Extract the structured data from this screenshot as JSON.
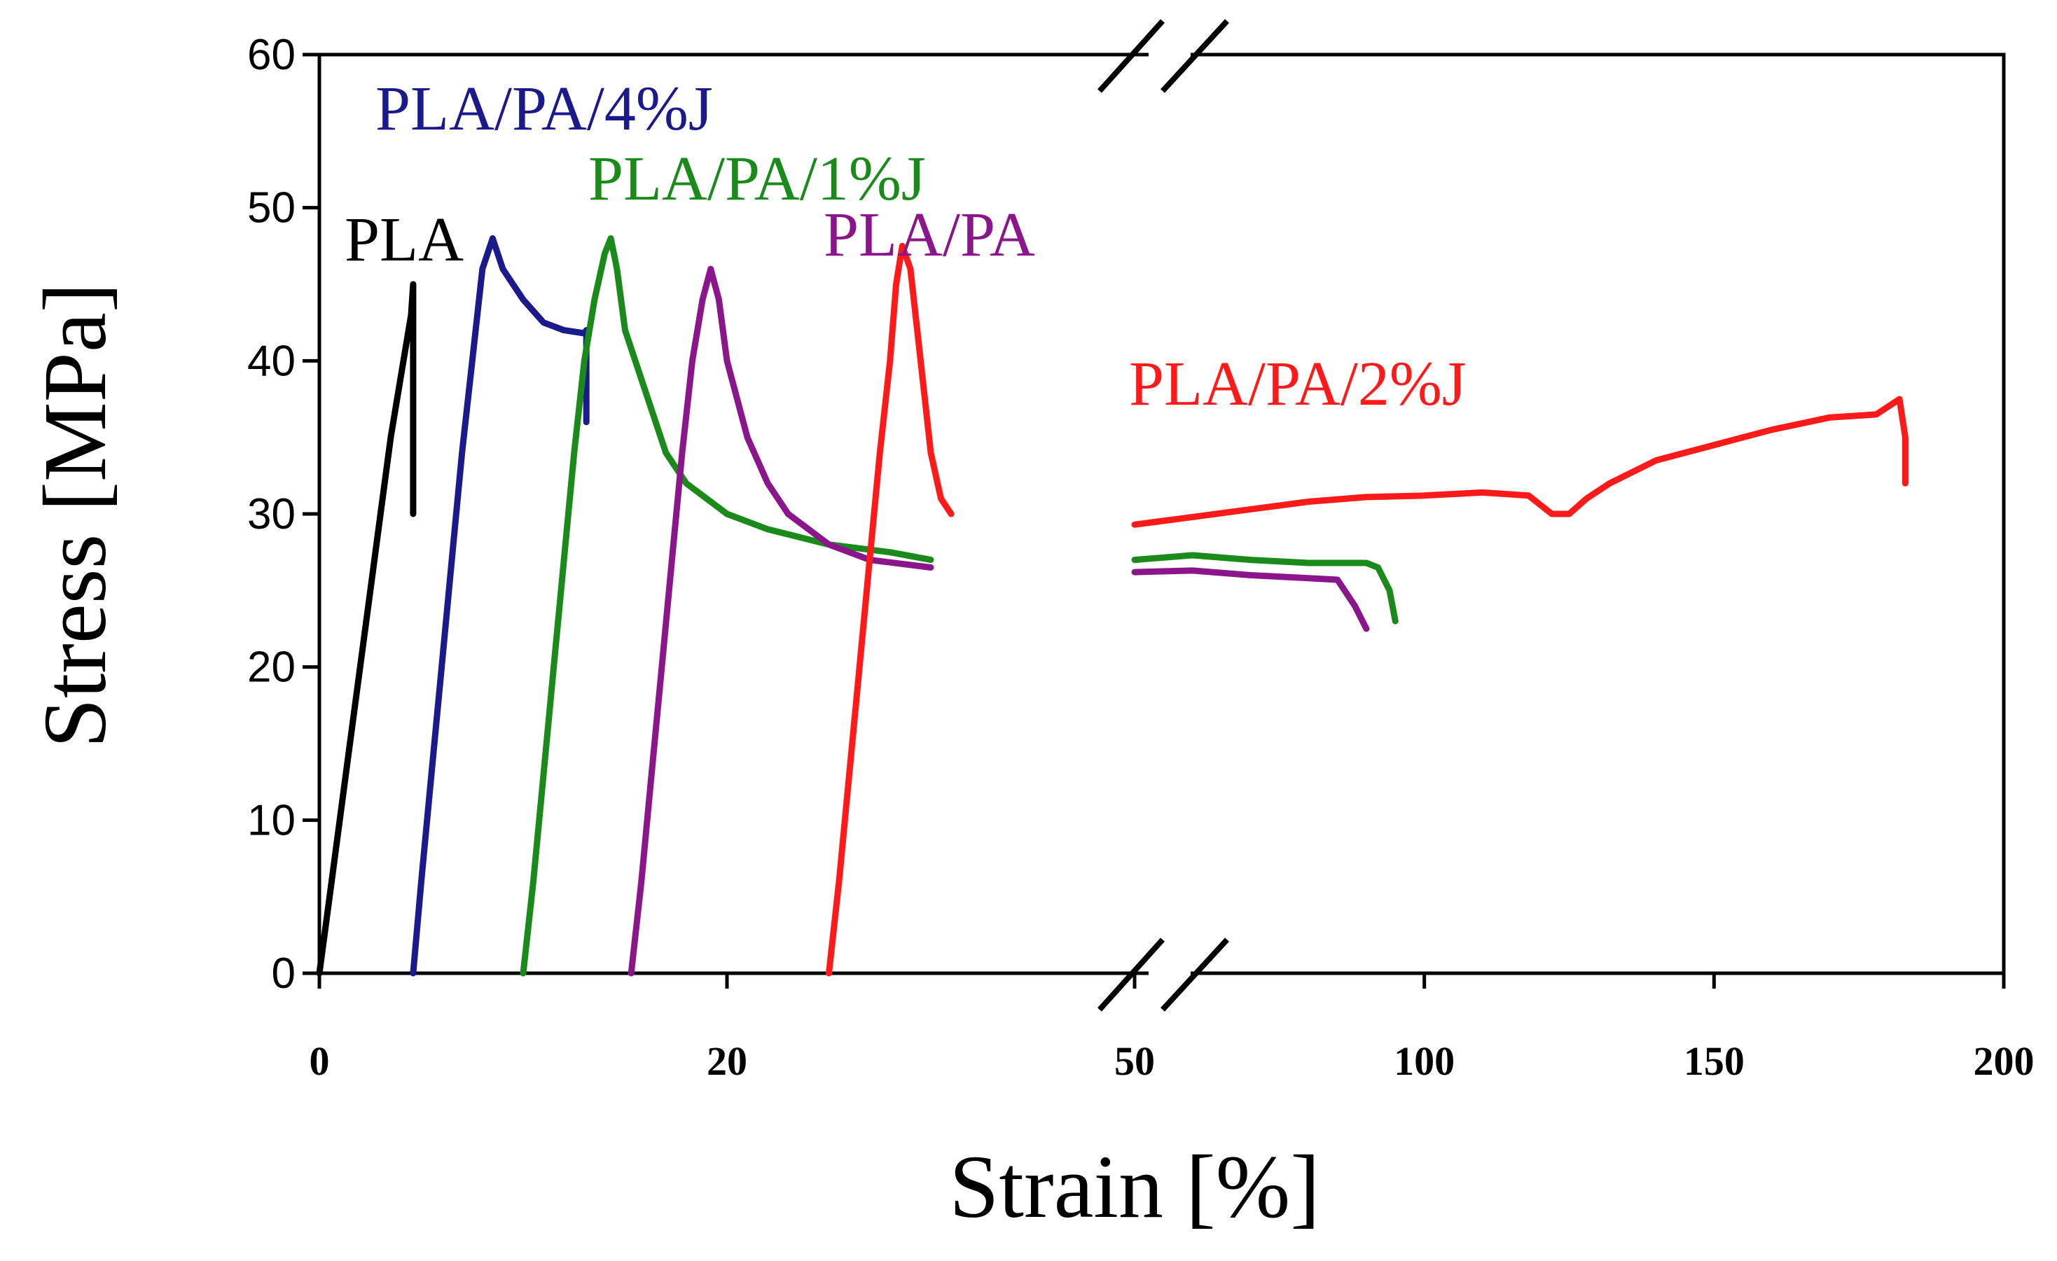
{
  "chart_data": {
    "type": "line",
    "title": "",
    "xlabel": "Strain [%]",
    "ylabel": "Stress [MPa]",
    "ylim": [
      0,
      60
    ],
    "grid": false,
    "axis_break": {
      "left_range": [
        0,
        40
      ],
      "right_range": [
        50,
        200
      ],
      "break_at": 40
    },
    "x_ticks": [
      "0",
      "20",
      "50",
      "100",
      "150",
      "200"
    ],
    "y_ticks": [
      "0",
      "10",
      "20",
      "30",
      "40",
      "50",
      "60"
    ],
    "series": [
      {
        "name": "PLA",
        "label": "PLA",
        "color": "#000000",
        "x": [
          0,
          0.5,
          1,
          1.5,
          2,
          2.5,
          3,
          3.5,
          4,
          4.5,
          4.6,
          4.6,
          4.6
        ],
        "y": [
          0,
          5,
          10,
          15,
          20,
          25,
          30,
          35,
          39,
          43,
          45,
          38,
          30
        ]
      },
      {
        "name": "PLA/PA/4%J",
        "label": "PLA/PA/4%J",
        "color": "#1a1a8c",
        "x": [
          4.6,
          5,
          5.5,
          6,
          6.5,
          7,
          7.5,
          8,
          8.5,
          9,
          10,
          11,
          12,
          13,
          13.1,
          13.1
        ],
        "y": [
          0,
          6,
          13,
          20,
          27,
          34,
          40,
          46,
          48,
          46,
          44,
          42.5,
          42,
          41.8,
          42,
          36
        ]
      },
      {
        "name": "PLA/PA/1%J",
        "label": "PLA/PA/1%J",
        "color": "#1a8a1a",
        "x": [
          10,
          10.5,
          11,
          11.5,
          12,
          12.5,
          13,
          13.5,
          14,
          14.3,
          14.6,
          15,
          16,
          17,
          18,
          19,
          20,
          22,
          25,
          28,
          30,
          50,
          60,
          70,
          80,
          90,
          92,
          94,
          95
        ],
        "y": [
          0,
          6,
          13,
          20,
          27,
          34,
          40,
          44,
          47,
          48,
          46,
          42,
          38,
          34,
          32,
          31,
          30,
          29,
          28,
          27.5,
          27,
          27,
          27.3,
          27,
          26.8,
          26.8,
          26.5,
          25,
          23
        ]
      },
      {
        "name": "PLA/PA",
        "label": "PLA/PA",
        "color": "#8b158b",
        "x": [
          15.3,
          15.8,
          16.3,
          16.8,
          17.3,
          17.8,
          18.3,
          18.8,
          19.2,
          19.6,
          20,
          21,
          22,
          23,
          25,
          27,
          30,
          50,
          60,
          70,
          80,
          85,
          88,
          90
        ],
        "y": [
          0,
          6,
          13,
          20,
          27,
          34,
          40,
          44,
          46,
          44,
          40,
          35,
          32,
          30,
          28,
          27,
          26.5,
          26.2,
          26.3,
          26,
          25.8,
          25.7,
          24,
          22.5
        ]
      },
      {
        "name": "PLA/PA/2%J",
        "label": "PLA/PA/2%J",
        "color": "#ff1a1a",
        "x": [
          25,
          25.5,
          26,
          26.5,
          27,
          27.5,
          28,
          28.3,
          28.6,
          29,
          29.5,
          30,
          30.5,
          31,
          50,
          60,
          70,
          80,
          90,
          100,
          110,
          118,
          122,
          125,
          128,
          132,
          140,
          150,
          160,
          170,
          178,
          182,
          183,
          183
        ],
        "y": [
          0,
          6,
          13,
          20,
          27,
          34,
          40,
          45,
          47.5,
          46,
          40,
          34,
          31,
          30,
          29.3,
          29.8,
          30.3,
          30.8,
          31.1,
          31.2,
          31.4,
          31.2,
          30,
          30,
          31,
          32,
          33.5,
          34.5,
          35.5,
          36.3,
          36.5,
          37.5,
          35,
          32
        ]
      }
    ]
  }
}
